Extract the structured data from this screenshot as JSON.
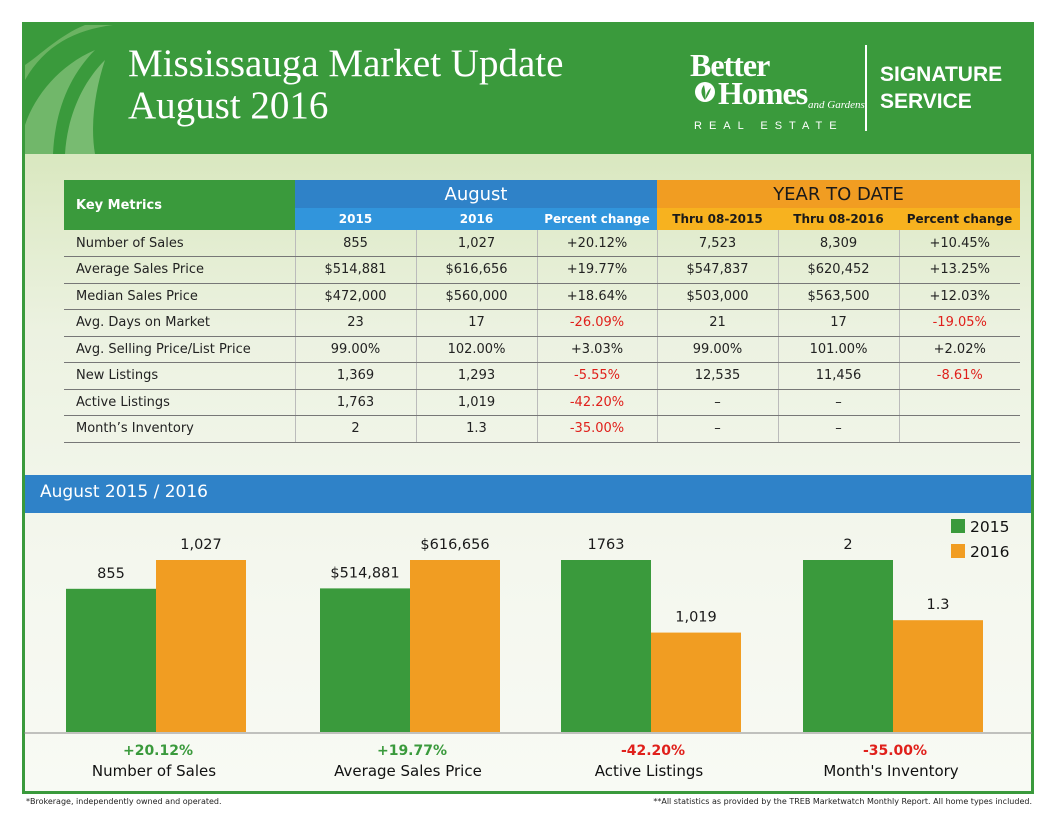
{
  "header": {
    "title_line1": "Mississauga Market Update",
    "title_line2": "August 2016",
    "brand_line1": "Better",
    "brand_line2": "Homes",
    "brand_line3": "and Gardens.",
    "brand_line4": "REAL ESTATE",
    "signature_line1": "SIGNATURE",
    "signature_line2": "SERVICE"
  },
  "table": {
    "key_label": "Key Metrics",
    "group_august": "August",
    "group_ytd": "YEAR TO DATE",
    "subheaders": [
      "2015",
      "2016",
      "Percent change",
      "Thru 08-2015",
      "Thru 08-2016",
      "Percent change"
    ],
    "rows": [
      {
        "label": "Number of Sales",
        "cells": [
          "855",
          "1,027",
          "+20.12%",
          "7,523",
          "8,309",
          "+10.45%"
        ],
        "negative": [
          false,
          false,
          false,
          false,
          false,
          false
        ]
      },
      {
        "label": "Average Sales Price",
        "cells": [
          "$514,881",
          "$616,656",
          "+19.77%",
          "$547,837",
          "$620,452",
          "+13.25%"
        ],
        "negative": [
          false,
          false,
          false,
          false,
          false,
          false
        ]
      },
      {
        "label": "Median Sales Price",
        "cells": [
          "$472,000",
          "$560,000",
          "+18.64%",
          "$503,000",
          "$563,500",
          "+12.03%"
        ],
        "negative": [
          false,
          false,
          false,
          false,
          false,
          false
        ]
      },
      {
        "label": "Avg. Days on Market",
        "cells": [
          "23",
          "17",
          "-26.09%",
          "21",
          "17",
          "-19.05%"
        ],
        "negative": [
          false,
          false,
          true,
          false,
          false,
          true
        ]
      },
      {
        "label": "Avg. Selling Price/List Price",
        "cells": [
          "99.00%",
          "102.00%",
          "+3.03%",
          "99.00%",
          "101.00%",
          "+2.02%"
        ],
        "negative": [
          false,
          false,
          false,
          false,
          false,
          false
        ]
      },
      {
        "label": "New Listings",
        "cells": [
          "1,369",
          "1,293",
          "-5.55%",
          "12,535",
          "11,456",
          "-8.61%"
        ],
        "negative": [
          false,
          false,
          true,
          false,
          false,
          true
        ]
      },
      {
        "label": "Active Listings",
        "cells": [
          "1,763",
          "1,019",
          "-42.20%",
          "–",
          "–",
          ""
        ],
        "negative": [
          false,
          false,
          true,
          false,
          false,
          false
        ]
      },
      {
        "label": "Month’s Inventory",
        "cells": [
          "2",
          "1.3",
          "-35.00%",
          "–",
          "–",
          ""
        ],
        "negative": [
          false,
          false,
          true,
          false,
          false,
          false
        ]
      }
    ]
  },
  "chart_section": {
    "title": "August 2015 / 2016"
  },
  "chart_data": {
    "type": "bar",
    "series": [
      {
        "name": "2015",
        "color": "#3a9a3c",
        "values": [
          855,
          514881,
          1763,
          2
        ],
        "labels": [
          "855",
          "$514,881",
          "1763",
          "2"
        ]
      },
      {
        "name": "2016",
        "color": "#f19d22",
        "values": [
          1027,
          616656,
          1019,
          1.3
        ],
        "labels": [
          "1,027",
          "$616,656",
          "1,019",
          "1.3"
        ]
      }
    ],
    "groups": [
      {
        "category": "Number of Sales",
        "change": "+20.12%",
        "change_color": "#3a9a3c"
      },
      {
        "category": "Average Sales Price",
        "change": "+19.77%",
        "change_color": "#3a9a3c"
      },
      {
        "category": "Active Listings",
        "change": "-42.20%",
        "change_color": "#e0201b"
      },
      {
        "category": "Month's Inventory",
        "change": "-35.00%",
        "change_color": "#e0201b"
      }
    ],
    "legend_position": "top-right",
    "note": "Each category is scaled independently (no shared y-axis)."
  },
  "footer": {
    "left": "*Brokerage, independently owned and operated.",
    "right": "**All statistics as provided by the TREB Marketwatch Monthly Report. All home types included."
  }
}
